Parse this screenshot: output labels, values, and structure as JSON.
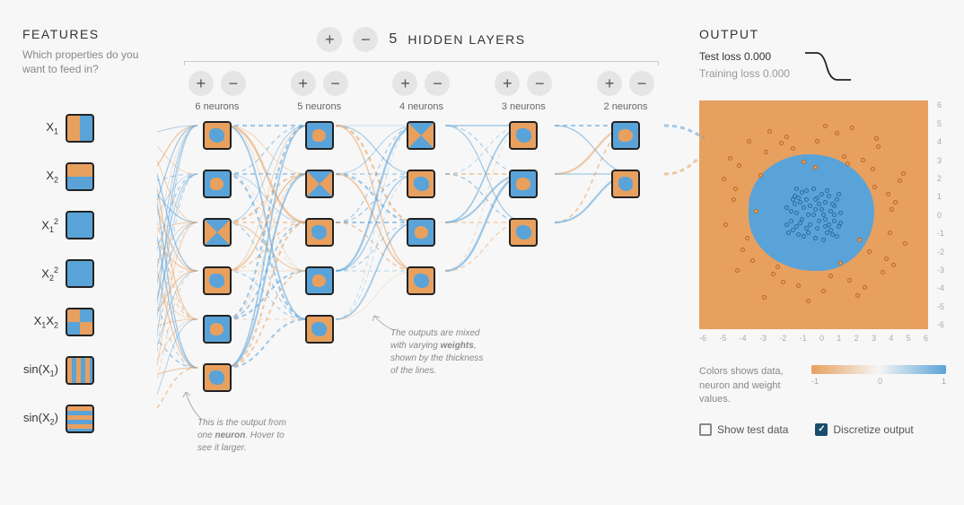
{
  "colors": {
    "orange": "#e8a05f",
    "blue": "#5aa3d8",
    "dark_blue": "#2a6aa0",
    "dark_orange": "#b86820",
    "bg": "#f7f7f7",
    "text": "#333333",
    "muted": "#888888",
    "grid": "#e0e0e0",
    "checkbox_fill": "#1a4d6e"
  },
  "features": {
    "title": "FEATURES",
    "subtitle": "Which properties do you want to feed in?",
    "items": [
      {
        "id": "x1",
        "label_html": "X<sub>1</sub>",
        "active": true,
        "pattern": "vsplit"
      },
      {
        "id": "x2",
        "label_html": "X<sub>2</sub>",
        "active": true,
        "pattern": "hsplit"
      },
      {
        "id": "x1sq",
        "label_html": "X<sub>1</sub><sup>2</sup>",
        "active": true,
        "pattern": "solid"
      },
      {
        "id": "x2sq",
        "label_html": "X<sub>2</sub><sup>2</sup>",
        "active": true,
        "pattern": "solid"
      },
      {
        "id": "x1x2",
        "label_html": "X<sub>1</sub>X<sub>2</sub>",
        "active": true,
        "pattern": "checker"
      },
      {
        "id": "sinx1",
        "label_html": "sin(X<sub>1</sub>)",
        "active": true,
        "pattern": "vstripes"
      },
      {
        "id": "sinx2",
        "label_html": "sin(X<sub>2</sub>)",
        "active": true,
        "pattern": "hstripes"
      }
    ]
  },
  "network": {
    "layers_label": "HIDDEN LAYERS",
    "layers_count": 5,
    "layers": [
      {
        "count": 6,
        "label": "6 neurons"
      },
      {
        "count": 5,
        "label": "5 neurons"
      },
      {
        "count": 4,
        "label": "4 neurons"
      },
      {
        "count": 3,
        "label": "3 neurons"
      },
      {
        "count": 2,
        "label": "2 neurons"
      }
    ],
    "buttons": {
      "plus": "+",
      "minus": "−"
    }
  },
  "annotations": {
    "neuron": {
      "text_parts": [
        "This is the output from one ",
        "neuron",
        ". Hover to see it larger."
      ],
      "bold_index": 1
    },
    "weights": {
      "text_parts": [
        "The outputs are mixed with varying ",
        "weights",
        ", shown by the thickness of the lines."
      ],
      "bold_index": 1
    }
  },
  "output": {
    "title": "OUTPUT",
    "test_loss_label": "Test loss",
    "test_loss_value": "0.000",
    "train_loss_label": "Training loss",
    "train_loss_value": "0.000",
    "plot": {
      "bg_color": "#e8a05f",
      "blob_color": "#5aa3d8",
      "xlim": [
        -6,
        6
      ],
      "ylim": [
        -6,
        6
      ],
      "x_ticks": [
        -6,
        -5,
        -4,
        -3,
        -2,
        -1,
        0,
        1,
        2,
        3,
        4,
        5,
        6
      ],
      "y_ticks": [
        6,
        5,
        4,
        3,
        2,
        1,
        0,
        -1,
        -2,
        -3,
        -4,
        -5,
        -6
      ],
      "blue_points": [
        [
          0.1,
          0.3
        ],
        [
          -0.4,
          0.8
        ],
        [
          0.6,
          -0.2
        ],
        [
          -0.9,
          0.1
        ],
        [
          0.2,
          -0.7
        ],
        [
          1.1,
          0.5
        ],
        [
          -1.2,
          -0.3
        ],
        [
          0.8,
          1.0
        ],
        [
          -0.5,
          -1.1
        ],
        [
          1.3,
          -0.6
        ],
        [
          0.0,
          1.4
        ],
        [
          -1.4,
          0.4
        ],
        [
          0.5,
          0.0
        ],
        [
          -0.2,
          -0.5
        ],
        [
          1.0,
          -1.0
        ],
        [
          -0.8,
          0.9
        ],
        [
          0.3,
          0.6
        ],
        [
          -1.1,
          -0.8
        ],
        [
          0.9,
          0.2
        ],
        [
          -0.6,
          1.2
        ],
        [
          1.2,
          0.8
        ],
        [
          -0.3,
          0.0
        ],
        [
          0.7,
          -0.9
        ],
        [
          -1.0,
          0.6
        ],
        [
          0.4,
          1.1
        ],
        [
          -0.7,
          -0.4
        ],
        [
          1.4,
          0.1
        ],
        [
          -1.3,
          -0.9
        ],
        [
          0.1,
          -1.2
        ],
        [
          0.6,
          0.7
        ],
        [
          -0.9,
          -0.6
        ],
        [
          1.1,
          -0.3
        ],
        [
          -0.4,
          1.3
        ],
        [
          0.8,
          -0.5
        ],
        [
          -1.2,
          0.2
        ],
        [
          0.2,
          0.9
        ],
        [
          -0.5,
          0.4
        ],
        [
          1.0,
          0.6
        ],
        [
          -0.8,
          -1.0
        ],
        [
          0.3,
          -0.3
        ],
        [
          0.0,
          0.0
        ],
        [
          1.3,
          1.1
        ],
        [
          -1.1,
          0.8
        ],
        [
          0.5,
          -1.3
        ],
        [
          -0.2,
          0.5
        ],
        [
          0.9,
          -0.8
        ],
        [
          -0.6,
          -0.2
        ],
        [
          1.2,
          -1.1
        ],
        [
          -1.4,
          -0.5
        ],
        [
          0.4,
          0.3
        ],
        [
          0.7,
          1.3
        ],
        [
          -0.3,
          -0.9
        ],
        [
          1.4,
          -0.4
        ],
        [
          -1.0,
          1.0
        ],
        [
          0.1,
          0.8
        ],
        [
          -0.7,
          0.7
        ],
        [
          0.6,
          -0.6
        ],
        [
          -0.9,
          1.4
        ],
        [
          1.1,
          0.0
        ],
        [
          -0.4,
          -0.7
        ]
      ],
      "orange_points": [
        [
          3.2,
          1.5
        ],
        [
          -2.8,
          2.1
        ],
        [
          1.9,
          -3.4
        ],
        [
          -3.5,
          -1.2
        ],
        [
          4.1,
          0.3
        ],
        [
          -1.7,
          3.8
        ],
        [
          2.6,
          2.9
        ],
        [
          -4.2,
          0.8
        ],
        [
          0.5,
          -4.0
        ],
        [
          3.8,
          -2.3
        ],
        [
          -2.1,
          -3.1
        ],
        [
          4.5,
          1.8
        ],
        [
          -3.9,
          2.6
        ],
        [
          1.2,
          4.3
        ],
        [
          -0.8,
          -3.7
        ],
        [
          2.9,
          -1.9
        ],
        [
          -4.6,
          -0.5
        ],
        [
          3.4,
          3.6
        ],
        [
          -1.4,
          4.1
        ],
        [
          0.2,
          3.9
        ],
        [
          4.0,
          -0.9
        ],
        [
          -3.2,
          -2.4
        ],
        [
          2.3,
          -4.2
        ],
        [
          -2.5,
          3.3
        ],
        [
          4.7,
          2.2
        ],
        [
          -4.1,
          1.4
        ],
        [
          1.6,
          3.1
        ],
        [
          -0.3,
          -4.5
        ],
        [
          3.6,
          -3.0
        ],
        [
          -3.7,
          -1.8
        ],
        [
          2.0,
          4.6
        ],
        [
          -1.9,
          -2.7
        ],
        [
          4.3,
          0.7
        ],
        [
          -4.4,
          3.0
        ],
        [
          0.9,
          -3.2
        ],
        [
          3.1,
          2.4
        ],
        [
          -2.3,
          4.4
        ],
        [
          1.4,
          -2.5
        ],
        [
          -3.0,
          0.2
        ],
        [
          4.8,
          -1.5
        ],
        [
          -1.1,
          3.5
        ],
        [
          2.7,
          -3.8
        ],
        [
          -4.0,
          -2.9
        ],
        [
          0.6,
          4.7
        ],
        [
          3.9,
          1.1
        ],
        [
          -2.6,
          -4.3
        ],
        [
          1.8,
          2.7
        ],
        [
          -3.4,
          3.9
        ],
        [
          4.2,
          -2.6
        ],
        [
          -0.5,
          2.8
        ],
        [
          2.4,
          -1.3
        ],
        [
          -4.7,
          1.9
        ],
        [
          3.3,
          4.0
        ],
        [
          -1.6,
          -3.5
        ],
        [
          0.1,
          2.5
        ]
      ]
    },
    "legend": {
      "text": "Colors shows data, neuron and weight values.",
      "min": "-1",
      "mid": "0",
      "max": "1"
    },
    "checkboxes": {
      "show_test": {
        "label": "Show test data",
        "checked": false
      },
      "discretize": {
        "label": "Discretize output",
        "checked": true
      }
    }
  }
}
